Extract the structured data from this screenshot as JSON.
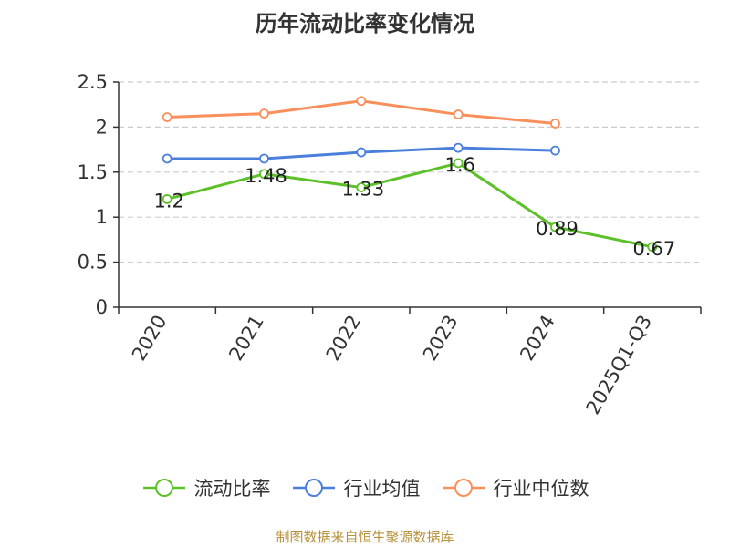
{
  "chart_data": {
    "type": "line",
    "title": "历年流动比率变化情况",
    "categories": [
      "2020",
      "2021",
      "2022",
      "2023",
      "2024",
      "2025Q1-Q3"
    ],
    "yticks": [
      "0",
      "0.5",
      "1",
      "1.5",
      "2",
      "2.5"
    ],
    "ylim": [
      0,
      2.5
    ],
    "grid": true,
    "legend_position": "bottom",
    "series": [
      {
        "name": "流动比率",
        "color": "#5cc128",
        "values": [
          1.2,
          1.48,
          1.33,
          1.6,
          0.89,
          0.67
        ],
        "labels": [
          "1.2",
          "1.48",
          "1.33",
          "1.6",
          "0.89",
          "0.67"
        ]
      },
      {
        "name": "行业均值",
        "color": "#4a7fdc",
        "values": [
          1.65,
          1.65,
          1.72,
          1.77,
          1.74,
          null
        ]
      },
      {
        "name": "行业中位数",
        "color": "#f98f5b",
        "values": [
          2.11,
          2.15,
          2.29,
          2.14,
          2.04,
          null
        ]
      }
    ]
  },
  "footer": {
    "source": "制图数据来自恒生聚源数据库"
  }
}
